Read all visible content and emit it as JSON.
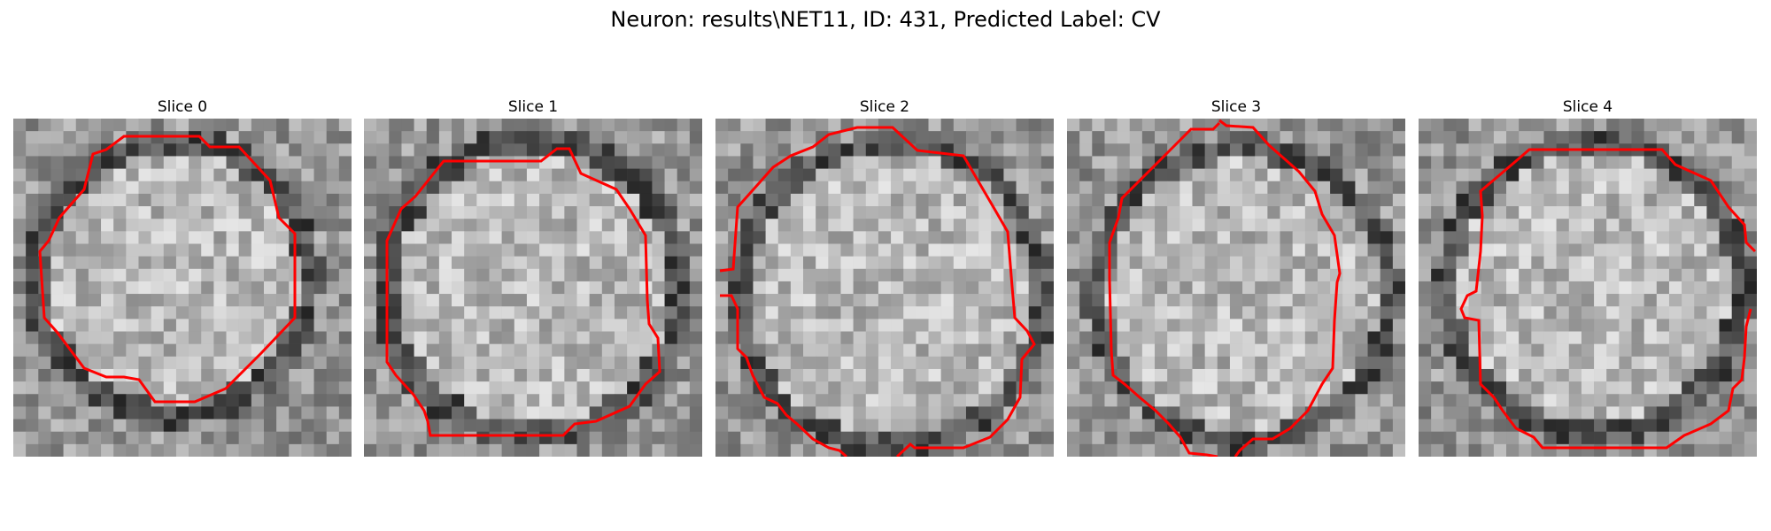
{
  "figure": {
    "title": "Neuron: results\\NET11, ID: 431, Predicted Label: CV"
  },
  "slices": [
    {
      "title": "Slice 0"
    },
    {
      "title": "Slice 1"
    },
    {
      "title": "Slice 2"
    },
    {
      "title": "Slice 3"
    },
    {
      "title": "Slice 4"
    }
  ],
  "colors": {
    "contour": "#ff0000",
    "background": "#ffffff"
  },
  "image": {
    "colormap": "grayscale",
    "grid_size": 27
  }
}
